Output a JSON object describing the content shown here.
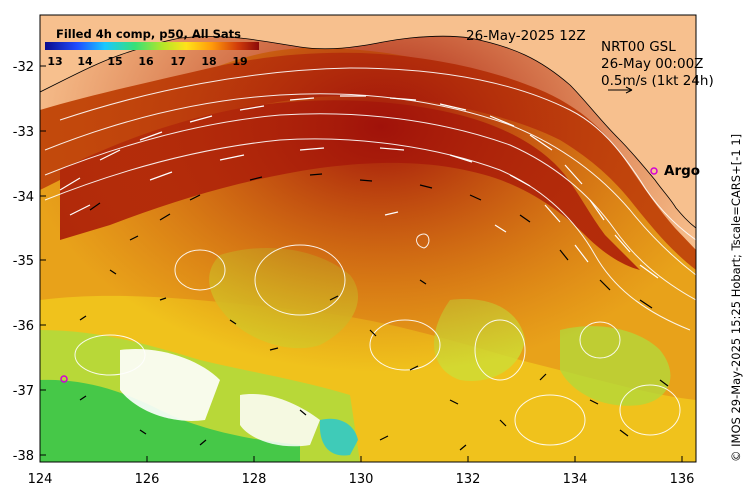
{
  "map": {
    "colorbar_title": "Filled 4h comp, p50, All Sats",
    "colorbar_ticks": [
      "13",
      "14",
      "15",
      "16",
      "17",
      "18",
      "19"
    ],
    "colorbar_range": [
      12.5,
      19.8
    ],
    "date_label": "26-May-2025 12Z",
    "product_lines": [
      "NRT00 GSL",
      "26-May 00:00Z",
      "0.5m/s (1kt 24h)"
    ],
    "argo_label": "Argo",
    "credit": "© IMOS 29-May-2025 15:25 Hobart; Tscale=CARS+[-1 1]",
    "lon_ticks": [
      "124",
      "126",
      "128",
      "130",
      "132",
      "134",
      "136"
    ],
    "lat_ticks": [
      "-32",
      "-33",
      "-34",
      "-35",
      "-36",
      "-37",
      "-38"
    ],
    "lon_range": [
      124,
      136.5
    ],
    "lat_range": [
      -31.3,
      -38.1
    ],
    "colors": {
      "land": "#f7c08e",
      "coast": "#000000",
      "contour": "#ffffff",
      "argo": "#d400d4"
    }
  }
}
